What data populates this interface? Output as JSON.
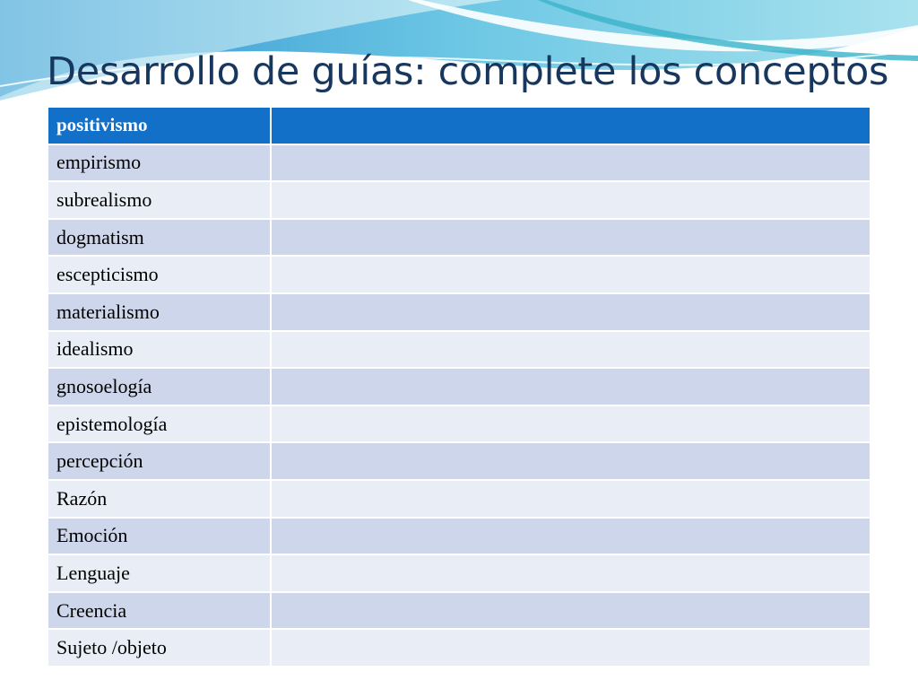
{
  "slide": {
    "title": "Desarrollo de guías: complete los conceptos",
    "colors": {
      "title": "#17375e",
      "header_fill": "#1270c8",
      "row_band_dark": "#cdd6ea",
      "row_band_light": "#e8edf6"
    }
  },
  "table": {
    "header": {
      "term": "positivismo",
      "definition": ""
    },
    "rows": [
      {
        "term": "empirismo",
        "definition": ""
      },
      {
        "term": "subrealismo",
        "definition": ""
      },
      {
        "term": "dogmatism",
        "definition": ""
      },
      {
        "term": "escepticismo",
        "definition": ""
      },
      {
        "term": "materialismo",
        "definition": ""
      },
      {
        "term": "idealismo",
        "definition": ""
      },
      {
        "term": "gnosoelogía",
        "definition": ""
      },
      {
        "term": "epistemología",
        "definition": ""
      },
      {
        "term": "percepción",
        "definition": ""
      },
      {
        "term": "Razón",
        "definition": ""
      },
      {
        "term": "Emoción",
        "definition": ""
      },
      {
        "term": "Lenguaje",
        "definition": ""
      },
      {
        "term": "Creencia",
        "definition": ""
      },
      {
        "term": "Sujeto /objeto",
        "definition": ""
      }
    ]
  }
}
